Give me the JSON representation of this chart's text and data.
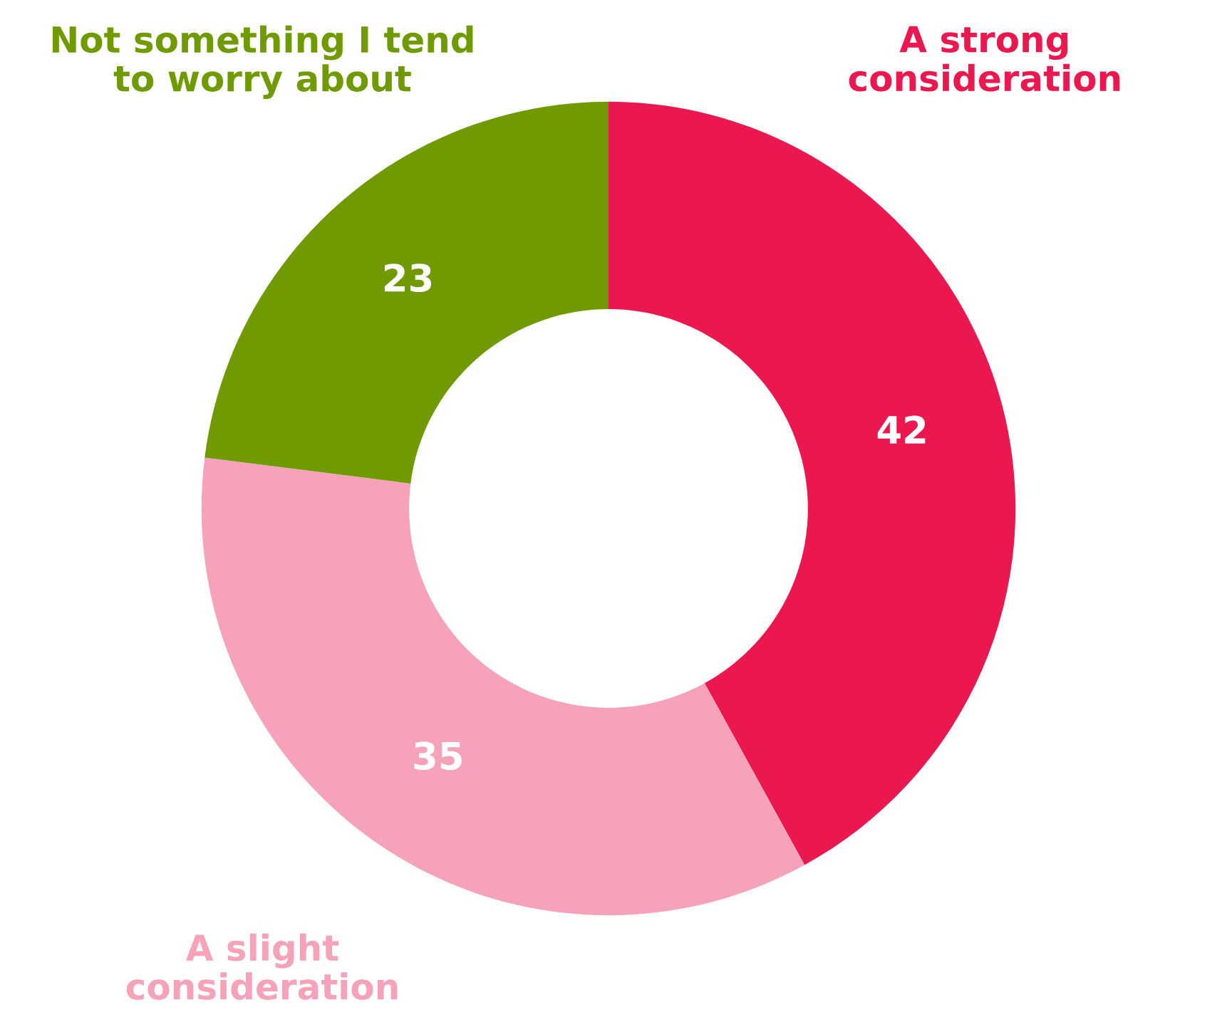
{
  "chart_data": {
    "type": "donut",
    "categories": [
      "A strong consideration",
      "A slight consideration",
      "Not something I tend to worry about"
    ],
    "values": [
      42,
      35,
      23
    ],
    "colors": [
      "#eb1850",
      "#f6a3b9",
      "#6f9a00"
    ],
    "data_labels": true
  }
}
